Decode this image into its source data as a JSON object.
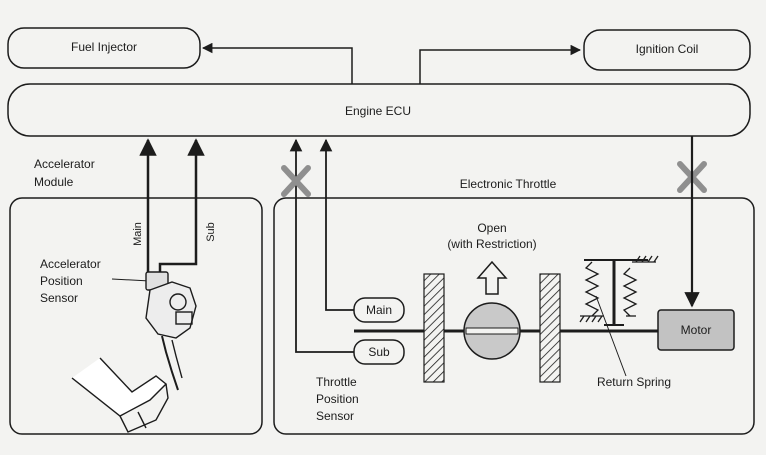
{
  "boxes": {
    "fuel_injector": "Fuel Injector",
    "ignition_coil": "Ignition Coil",
    "engine_ecu": "Engine ECU"
  },
  "accelerator": {
    "module_line1": "Accelerator",
    "module_line2": "Module",
    "sensor_line1": "Accelerator",
    "sensor_line2": "Position",
    "sensor_line3": "Sensor",
    "main_signal": "Main",
    "sub_signal": "Sub"
  },
  "throttle": {
    "title": "Electronic Throttle",
    "open_line1": "Open",
    "open_line2": "(with Restriction)",
    "main_sensor": "Main",
    "sub_sensor": "Sub",
    "motor": "Motor",
    "return_spring": "Return Spring",
    "tps_line1": "Throttle",
    "tps_line2": "Position",
    "tps_line3": "Sensor"
  },
  "colors": {
    "line": "#1c1c1c",
    "background": "#f3f3f1",
    "cross": "#8f8f8f",
    "motor_fill": "#c2c2c2"
  },
  "icons": [
    "cross-icon",
    "open-arrow-icon",
    "accelerator-pedal-icon",
    "spring-icon",
    "hatched-wall-icon"
  ]
}
